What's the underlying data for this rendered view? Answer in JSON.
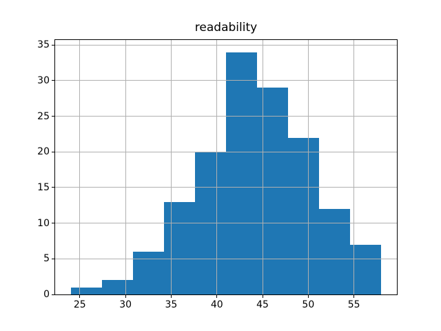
{
  "chart_data": {
    "type": "bar",
    "subtype": "histogram",
    "title": "readability",
    "bin_edges": [
      24.0,
      27.4,
      30.8,
      34.2,
      37.6,
      41.0,
      44.4,
      47.8,
      51.2,
      54.6,
      58.0
    ],
    "counts": [
      1,
      2,
      6,
      13,
      20,
      34,
      29,
      22,
      12,
      7
    ],
    "xlabel": "",
    "ylabel": "",
    "xticks": [
      25,
      30,
      35,
      40,
      45,
      50,
      55
    ],
    "yticks": [
      0,
      5,
      10,
      15,
      20,
      25,
      30,
      35
    ],
    "xlim": [
      22.3,
      59.7
    ],
    "ylim": [
      0,
      35.7
    ],
    "grid": true,
    "grid_above_bars": true,
    "legend": false,
    "bar_color": "#1f77b4",
    "grid_color": "#b0b0b0",
    "frame_color": "#000000",
    "text_color": "#000000",
    "background_color": "#ffffff"
  }
}
